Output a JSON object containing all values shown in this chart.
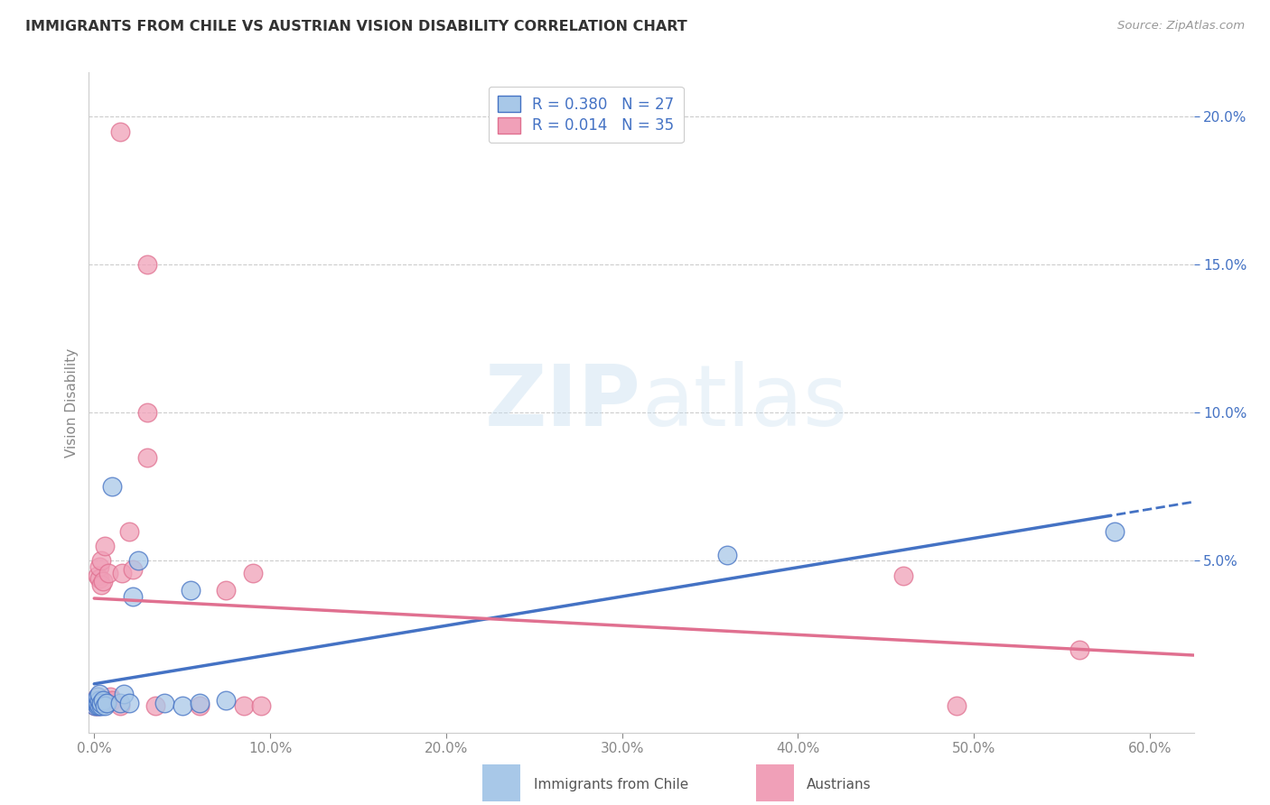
{
  "title": "IMMIGRANTS FROM CHILE VS AUSTRIAN VISION DISABILITY CORRELATION CHART",
  "source": "Source: ZipAtlas.com",
  "xlabel_ticks": [
    "0.0%",
    "10.0%",
    "20.0%",
    "30.0%",
    "40.0%",
    "50.0%",
    "60.0%"
  ],
  "xlabel_tick_vals": [
    0.0,
    0.1,
    0.2,
    0.3,
    0.4,
    0.5,
    0.6
  ],
  "ylabel": "Vision Disability",
  "ylabel_right_ticks": [
    "5.0%",
    "10.0%",
    "15.0%",
    "20.0%"
  ],
  "ylabel_right_tick_vals": [
    0.05,
    0.1,
    0.15,
    0.2
  ],
  "xlim": [
    -0.003,
    0.625
  ],
  "ylim": [
    -0.008,
    0.215
  ],
  "blue_color": "#a8c8e8",
  "pink_color": "#f0a0b8",
  "blue_line_color": "#4472c4",
  "pink_line_color": "#e07090",
  "blue_scatter": [
    [
      0.0005,
      0.001
    ],
    [
      0.001,
      0.002
    ],
    [
      0.001,
      0.003
    ],
    [
      0.002,
      0.001
    ],
    [
      0.002,
      0.002
    ],
    [
      0.002,
      0.004
    ],
    [
      0.003,
      0.001
    ],
    [
      0.003,
      0.003
    ],
    [
      0.003,
      0.005
    ],
    [
      0.004,
      0.001
    ],
    [
      0.004,
      0.002
    ],
    [
      0.005,
      0.003
    ],
    [
      0.006,
      0.001
    ],
    [
      0.007,
      0.002
    ],
    [
      0.01,
      0.075
    ],
    [
      0.015,
      0.002
    ],
    [
      0.017,
      0.005
    ],
    [
      0.02,
      0.002
    ],
    [
      0.022,
      0.038
    ],
    [
      0.025,
      0.05
    ],
    [
      0.04,
      0.002
    ],
    [
      0.05,
      0.001
    ],
    [
      0.055,
      0.04
    ],
    [
      0.06,
      0.002
    ],
    [
      0.075,
      0.003
    ],
    [
      0.36,
      0.052
    ],
    [
      0.58,
      0.06
    ]
  ],
  "pink_scatter": [
    [
      0.0005,
      0.001
    ],
    [
      0.001,
      0.002
    ],
    [
      0.001,
      0.003
    ],
    [
      0.002,
      0.001
    ],
    [
      0.002,
      0.004
    ],
    [
      0.002,
      0.045
    ],
    [
      0.003,
      0.002
    ],
    [
      0.003,
      0.044
    ],
    [
      0.003,
      0.048
    ],
    [
      0.004,
      0.042
    ],
    [
      0.004,
      0.05
    ],
    [
      0.005,
      0.003
    ],
    [
      0.005,
      0.043
    ],
    [
      0.006,
      0.055
    ],
    [
      0.007,
      0.003
    ],
    [
      0.008,
      0.046
    ],
    [
      0.009,
      0.004
    ],
    [
      0.01,
      0.003
    ],
    [
      0.015,
      0.001
    ],
    [
      0.016,
      0.046
    ],
    [
      0.02,
      0.06
    ],
    [
      0.022,
      0.047
    ],
    [
      0.03,
      0.085
    ],
    [
      0.03,
      0.1
    ],
    [
      0.035,
      0.001
    ],
    [
      0.06,
      0.001
    ],
    [
      0.075,
      0.04
    ],
    [
      0.085,
      0.001
    ],
    [
      0.09,
      0.046
    ],
    [
      0.095,
      0.001
    ],
    [
      0.03,
      0.15
    ],
    [
      0.46,
      0.045
    ],
    [
      0.49,
      0.001
    ],
    [
      0.56,
      0.02
    ],
    [
      0.015,
      0.195
    ]
  ]
}
